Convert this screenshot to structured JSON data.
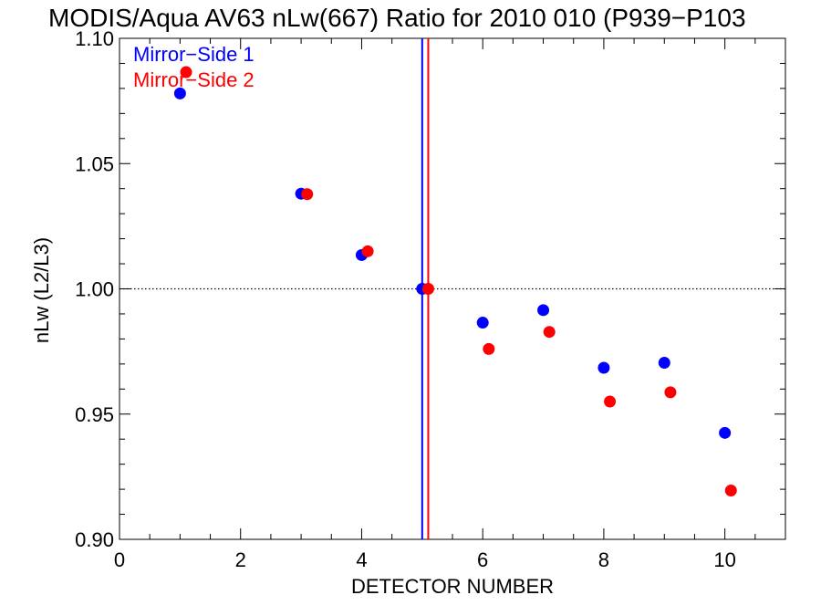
{
  "chart_data": {
    "type": "scatter",
    "title": "MODIS/Aqua AV63 nLw(667) Ratio for 2010 010 (P939−P103",
    "xlabel": "DETECTOR NUMBER",
    "ylabel": "nLw (L2/L3)",
    "xlim": [
      0,
      11
    ],
    "ylim": [
      0.9,
      1.1
    ],
    "x_ticks": [
      0,
      2,
      4,
      6,
      8,
      10
    ],
    "x_tick_labels": [
      "0",
      "2",
      "4",
      "6",
      "8",
      "10"
    ],
    "y_ticks": [
      0.9,
      0.95,
      1.0,
      1.05,
      1.1
    ],
    "y_tick_labels": [
      "0.90",
      "0.95",
      "1.00",
      "1.05",
      "1.10"
    ],
    "reference_line_y": 1.0,
    "legend_position": "top-left",
    "series": [
      {
        "name": "Mirror−Side 1",
        "color": "#0000ff",
        "vertical_line_x": 5.0,
        "x": [
          1,
          3,
          4,
          5,
          6,
          7,
          8,
          9,
          10
        ],
        "y": [
          1.078,
          1.038,
          1.0135,
          1.0,
          0.9865,
          0.9915,
          0.9685,
          0.9705,
          0.9425
        ]
      },
      {
        "name": "Mirror−Side 2",
        "color": "#ff0000",
        "vertical_line_x": 5.1,
        "x": [
          1.1,
          3.1,
          4.1,
          5.1,
          6.1,
          7.1,
          8.1,
          9.1,
          10.1
        ],
        "y": [
          1.0865,
          1.0378,
          1.015,
          1.0,
          0.976,
          0.9828,
          0.955,
          0.9587,
          0.9195
        ]
      }
    ]
  }
}
